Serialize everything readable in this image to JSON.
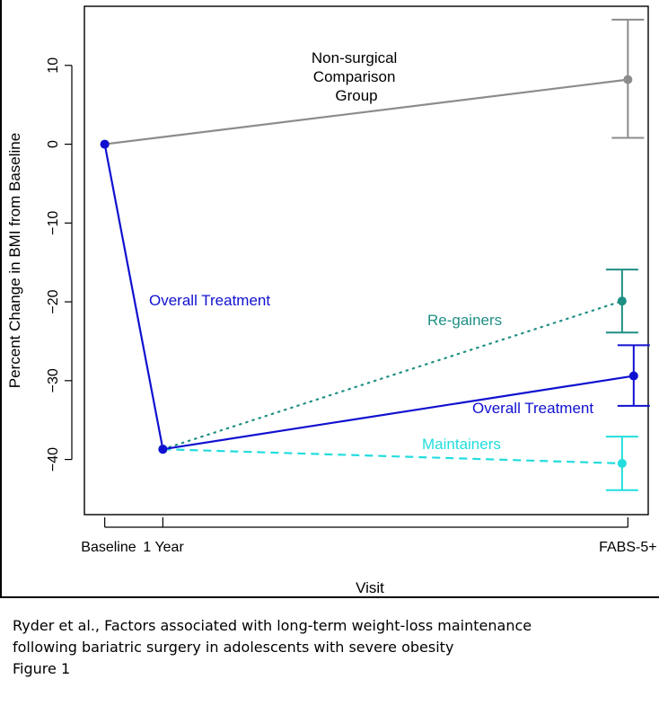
{
  "chart_data": {
    "type": "line",
    "title": "",
    "xlabel": "Visit",
    "ylabel": "Percent Change in BMI from Baseline",
    "categories": [
      "Baseline",
      "1 Year",
      "FABS-5+"
    ],
    "x_positions_years": [
      0,
      1,
      9
    ],
    "yticks": [
      10,
      0,
      -10,
      -20,
      -30,
      -40
    ],
    "ytick_labels": [
      "10",
      "0",
      "−10",
      "−20",
      "−30",
      "−40"
    ],
    "ylim": [
      -47,
      17.5
    ],
    "xlim": [
      -0.35,
      9.35
    ],
    "grid": false,
    "series": [
      {
        "name": "Non-surgical Comparison Group",
        "label_lines": [
          "Non-surgical",
          "Comparison",
          "Group"
        ],
        "color": "#8c8c8c",
        "style": "solid",
        "points": [
          {
            "x": 0,
            "y": 0
          },
          {
            "x": 9,
            "y": 8.2,
            "err_low": 0.8,
            "err_high": 15.8
          }
        ]
      },
      {
        "name": "Overall Treatment",
        "label": "Overall Treatment",
        "color": "#1010d0",
        "style": "solid",
        "points": [
          {
            "x": 0,
            "y": 0
          },
          {
            "x": 1,
            "y": -38.7
          },
          {
            "x": 9.1,
            "y": -29.4,
            "err_low": -33.2,
            "err_high": -25.5
          }
        ]
      },
      {
        "name": "Re-gainers",
        "label": "Re-gainers",
        "color": "#1f8f84",
        "style": "dotted",
        "points": [
          {
            "x": 1,
            "y": -38.7
          },
          {
            "x": 8.9,
            "y": -19.9,
            "err_low": -23.9,
            "err_high": -15.9
          }
        ]
      },
      {
        "name": "Maintainers",
        "label": "Maintainers",
        "color": "#22dddd",
        "style": "dashed",
        "points": [
          {
            "x": 1,
            "y": -38.7
          },
          {
            "x": 8.9,
            "y": -40.5,
            "err_low": -43.9,
            "err_high": -37.1
          }
        ]
      }
    ],
    "annotations": [
      {
        "text": "Overall Treatment",
        "x": 1.7,
        "y": -20,
        "color": "#1010d0"
      }
    ]
  },
  "caption": {
    "line1": " Ryder et al., Factors associated with long-term weight-loss maintenance",
    "line2": "following bariatric surgery in adolescents with severe obesity",
    "line3": "Figure 1"
  }
}
